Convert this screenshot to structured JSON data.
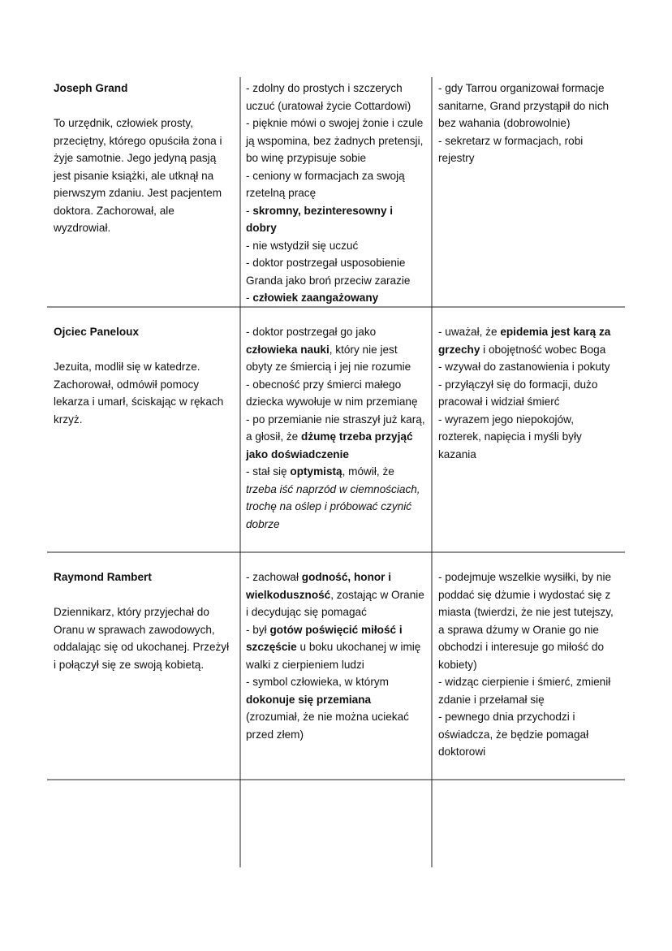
{
  "table": {
    "rows": [
      {
        "name": "Joseph Grand",
        "description": "To urzędnik, człowiek prosty, przeciętny, którego opuściła żona i żyje samotnie. Jego jedyną pasją jest pisanie książki, ale utknął na pierwszym zdaniu. Jest pacjentem doktora. Zachorował, ale wyzdrowiał.",
        "traits": [
          [
            {
              "t": "- zdolny do prostych i szczerych uczuć (uratował życie Cottardowi)"
            }
          ],
          [
            {
              "t": "- pięknie mówi o swojej żonie i czule ją wspomina, bez żadnych pretensji, bo winę przypisuje sobie"
            }
          ],
          [
            {
              "t": "- ceniony w formacjach za swoją rzetelną pracę"
            }
          ],
          [
            {
              "t": "- "
            },
            {
              "b": "skromny, bezinteresowny i dobry"
            }
          ],
          [
            {
              "t": "- nie wstydził się uczuć"
            }
          ],
          [
            {
              "t": "- doktor postrzegał usposobienie Granda jako broń przeciw zarazie"
            }
          ],
          [
            {
              "t": "- "
            },
            {
              "b": "człowiek zaangażowany"
            }
          ]
        ],
        "actions": [
          [
            {
              "t": "- gdy Tarrou organizował formacje sanitarne, Grand przystąpił do nich bez wahania (dobrowolnie)"
            }
          ],
          [
            {
              "t": "- sekretarz w formacjach, robi rejestry"
            }
          ]
        ]
      },
      {
        "name": "Ojciec Paneloux",
        "description": "Jezuita, modlił się w katedrze. Zachorował, odmówił pomocy lekarza i umarł, ściskając w rękach krzyż.",
        "traits": [
          [
            {
              "t": "- doktor postrzegał go jako "
            },
            {
              "b": "człowieka nauki"
            },
            {
              "t": ", który nie jest obyty ze śmiercią i jej nie rozumie"
            }
          ],
          [
            {
              "t": "- obecność przy śmierci małego dziecka wywołuje w nim przemianę"
            }
          ],
          [
            {
              "t": "- po przemianie nie straszył już karą, a głosił, że "
            },
            {
              "b": "dżumę trzeba przyjąć jako doświadczenie"
            }
          ],
          [
            {
              "t": "- stał się "
            },
            {
              "b": "optymistą"
            },
            {
              "t": ", mówił, że "
            },
            {
              "i": "trzeba iść naprzód w ciemnościach, trochę na oślep i próbować czynić dobrze"
            }
          ]
        ],
        "actions": [
          [
            {
              "t": "- uważał, że "
            },
            {
              "b": "epidemia jest karą za grzechy"
            },
            {
              "t": " i obojętność wobec Boga"
            }
          ],
          [
            {
              "t": "- wzywał do zastanowienia i pokuty"
            }
          ],
          [
            {
              "t": "- przyłączył się do formacji, dużo pracował i widział śmierć"
            }
          ],
          [
            {
              "t": "- wyrazem jego niepokojów, rozterek, napięcia i myśli były kazania"
            }
          ]
        ]
      },
      {
        "name": "Raymond Rambert",
        "description": "Dziennikarz, który przyjechał do Oranu w sprawach zawodowych, oddalając się od ukochanej. Przeżył i połączył się ze swoją kobietą.",
        "traits": [
          [
            {
              "t": "- zachował "
            },
            {
              "b": "godność, honor i wielkoduszność"
            },
            {
              "t": ", zostając w Oranie i decydując się pomagać"
            }
          ],
          [
            {
              "t": "- był "
            },
            {
              "b": "gotów poświęcić miłość i szczęście"
            },
            {
              "t": " u boku ukochanej w imię walki z cierpieniem ludzi"
            }
          ],
          [
            {
              "t": "- symbol człowieka, w którym "
            },
            {
              "b": "dokonuje się przemiana"
            }
          ],
          [
            {
              "t": "(zrozumiał, że nie można uciekać przed złem)"
            }
          ]
        ],
        "actions": [
          [
            {
              "t": "- podejmuje wszelkie wysiłki, by nie poddać się dżumie i wydostać się z miasta (twierdzi, że nie jest tutejszy, a sprawa dżumy w Oranie go nie obchodzi i interesuje go miłość do kobiety)"
            }
          ],
          [
            {
              "t": "- widząc cierpienie i śmierć, zmienił zdanie i przełamał się"
            }
          ],
          [
            {
              "t": "- pewnego dnia przychodzi i oświadcza, że będzie pomagał doktorowi"
            }
          ]
        ]
      }
    ]
  }
}
